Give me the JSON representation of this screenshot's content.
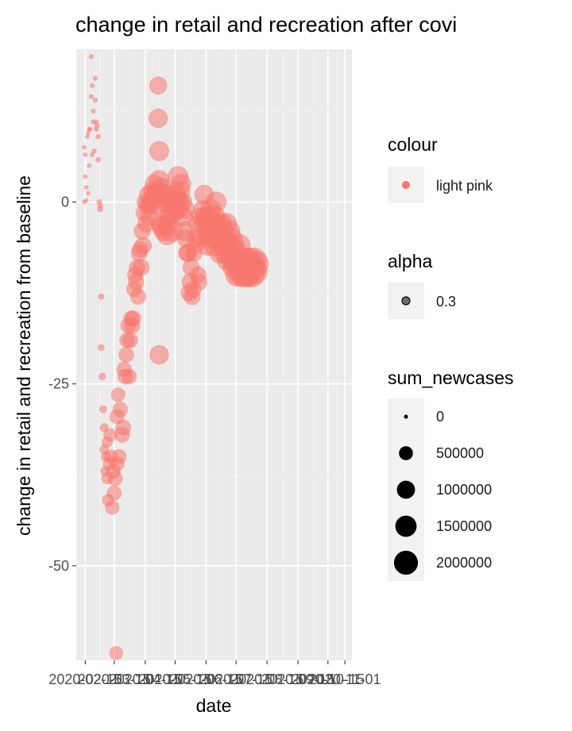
{
  "chart_data": {
    "type": "scatter",
    "title": "change in retail and recreation after covi",
    "xlabel": "date",
    "ylabel": "change in retail and recreation from baseline",
    "x_range": [
      "2020-02-06",
      "2020-11-08"
    ],
    "x_ticks": [
      "2020-02-15",
      "2020-03-15",
      "2020-04-15",
      "2020-05-15",
      "2020-06-15",
      "2020-07-15",
      "2020-08-15",
      "2020-09-15",
      "2020-10-15",
      "2020-11-01"
    ],
    "x_tick_labels": [
      "2020-02-15",
      "2020-03-15",
      "2020-04-15",
      "2020-05-15",
      "2020-06-15",
      "2020-07-15",
      "2020-08-15",
      "2020-09-15",
      "2020-10-15",
      "2020-11-01"
    ],
    "ylim": [
      -63,
      21
    ],
    "y_ticks": [
      0,
      -25,
      -50
    ],
    "y_tick_labels": [
      "0",
      "-25",
      "-50"
    ],
    "grid": true,
    "point_color": "#F8766D",
    "panel_background": "#EBEBEB",
    "point_alpha": 0.55,
    "legend": {
      "position": "right",
      "colour": {
        "title": "colour",
        "entries": [
          "light pink"
        ]
      },
      "alpha": {
        "title": "alpha",
        "entries": [
          "0.3"
        ]
      },
      "size": {
        "title": "sum_newcases",
        "entries": [
          "0",
          "500000",
          "1000000",
          "1500000",
          "2000000"
        ],
        "values": [
          0,
          500000,
          1000000,
          1500000,
          2000000
        ]
      }
    },
    "points_note": "each point: [day offset from 2020-02-06, change from baseline, sum_newcases]",
    "points": [
      [
        8,
        7.5,
        2000
      ],
      [
        8,
        0,
        2000
      ],
      [
        9,
        3.5,
        2000
      ],
      [
        9,
        6.5,
        2000
      ],
      [
        10,
        0.2,
        2000
      ],
      [
        10,
        2,
        2000
      ],
      [
        11,
        9,
        2000
      ],
      [
        12,
        1.2,
        2000
      ],
      [
        12,
        9.5,
        2000
      ],
      [
        13,
        10,
        2000
      ],
      [
        13,
        5,
        2000
      ],
      [
        14,
        10,
        2000
      ],
      [
        15,
        20,
        5000
      ],
      [
        15,
        14.5,
        5000
      ],
      [
        16,
        16,
        5000
      ],
      [
        16,
        6.5,
        5000
      ],
      [
        17,
        11,
        5000
      ],
      [
        17,
        12.5,
        5000
      ],
      [
        18,
        7,
        5000
      ],
      [
        19,
        17,
        5000
      ],
      [
        19,
        14,
        8000
      ],
      [
        20,
        11,
        8000
      ],
      [
        20,
        10,
        8000
      ],
      [
        21,
        10.5,
        10000
      ],
      [
        22,
        9,
        10000
      ],
      [
        22,
        5.8,
        10000
      ],
      [
        23,
        0,
        15000
      ],
      [
        24,
        -0.5,
        15000
      ],
      [
        24,
        -1,
        20000
      ],
      [
        25,
        -13,
        30000
      ],
      [
        25,
        -20,
        40000
      ],
      [
        26,
        -24,
        60000
      ],
      [
        27,
        -28.5,
        80000
      ],
      [
        28,
        -31,
        120000
      ],
      [
        28,
        -34,
        150000
      ],
      [
        29,
        -37,
        180000
      ],
      [
        30,
        -35,
        200000
      ],
      [
        31,
        -33,
        250000
      ],
      [
        31,
        -38,
        300000
      ],
      [
        32,
        -41,
        350000
      ],
      [
        33,
        -36,
        400000
      ],
      [
        34,
        -32,
        450000
      ],
      [
        35,
        -35,
        500000
      ],
      [
        36,
        -42,
        550000
      ],
      [
        37,
        -37,
        600000
      ],
      [
        38,
        -40,
        620000
      ],
      [
        39,
        -38,
        650000
      ],
      [
        40,
        -62,
        500000
      ],
      [
        41,
        -36,
        600000
      ],
      [
        41,
        -29.5,
        620000
      ],
      [
        42,
        -26.5,
        550000
      ],
      [
        43,
        -35,
        600000
      ],
      [
        44,
        -28.5,
        650000
      ],
      [
        46,
        -32,
        700000
      ],
      [
        47,
        -31,
        700000
      ],
      [
        48,
        -23,
        650000
      ],
      [
        49,
        -24,
        700000
      ],
      [
        50,
        -21,
        700000
      ],
      [
        51,
        -19,
        700000
      ],
      [
        52,
        -17,
        700000
      ],
      [
        53,
        -24,
        650000
      ],
      [
        54,
        -19,
        700000
      ],
      [
        55,
        -16,
        700000
      ],
      [
        56,
        -17,
        750000
      ],
      [
        57,
        -16,
        750000
      ],
      [
        58,
        -12,
        700000
      ],
      [
        59,
        -10,
        750000
      ],
      [
        60,
        -11,
        750000
      ],
      [
        61,
        -9,
        800000
      ],
      [
        62,
        -13,
        750000
      ],
      [
        63,
        -7,
        800000
      ],
      [
        64,
        -6.5,
        800000
      ],
      [
        65,
        -9,
        850000
      ],
      [
        66,
        -4,
        850000
      ],
      [
        67,
        -6,
        900000
      ],
      [
        68,
        -1.5,
        900000
      ],
      [
        69,
        0,
        900000
      ],
      [
        70,
        -3,
        950000
      ],
      [
        71,
        -0.5,
        950000
      ],
      [
        72,
        1,
        1000000
      ],
      [
        73,
        -2,
        1000000
      ],
      [
        74,
        -0.5,
        1000000
      ],
      [
        75,
        0,
        1050000
      ],
      [
        76,
        1.5,
        1050000
      ],
      [
        77,
        0.5,
        1100000
      ],
      [
        78,
        2.5,
        1100000
      ],
      [
        79,
        1,
        1150000
      ],
      [
        80,
        -0.5,
        1150000
      ],
      [
        81,
        1.5,
        1200000
      ],
      [
        82,
        16,
        1000000
      ],
      [
        82,
        11.5,
        1200000
      ],
      [
        83,
        -21,
        1200000
      ],
      [
        83,
        7,
        1300000
      ],
      [
        83,
        3,
        1350000
      ],
      [
        84,
        -3,
        1300000
      ],
      [
        85,
        2,
        1350000
      ],
      [
        86,
        -3.5,
        1350000
      ],
      [
        87,
        1,
        1400000
      ],
      [
        88,
        -4,
        1400000
      ],
      [
        89,
        0,
        1400000
      ],
      [
        90,
        -3,
        1450000
      ],
      [
        91,
        -4.5,
        1450000
      ],
      [
        92,
        1,
        1450000
      ],
      [
        93,
        -2,
        1500000
      ],
      [
        94,
        0,
        1500000
      ],
      [
        95,
        -1.5,
        1500000
      ],
      [
        96,
        -4,
        1550000
      ],
      [
        97,
        0,
        1500000
      ],
      [
        98,
        -1,
        1500000
      ],
      [
        99,
        1,
        1500000
      ],
      [
        100,
        0,
        1450000
      ],
      [
        101,
        -1,
        1450000
      ],
      [
        102,
        3.5,
        1400000
      ],
      [
        103,
        0,
        1400000
      ],
      [
        104,
        1.5,
        1400000
      ],
      [
        105,
        2.5,
        1350000
      ],
      [
        106,
        0,
        1300000
      ],
      [
        107,
        -2,
        1300000
      ],
      [
        108,
        -4,
        1250000
      ],
      [
        109,
        -1,
        1200000
      ],
      [
        110,
        -5,
        1100000
      ],
      [
        111,
        -7,
        1000000
      ],
      [
        112,
        -7,
        950000
      ],
      [
        113,
        -12.5,
        900000
      ],
      [
        114,
        -11,
        900000
      ],
      [
        115,
        -9,
        900000
      ],
      [
        116,
        -13,
        850000
      ],
      [
        117,
        -12,
        800000
      ],
      [
        118,
        -7,
        850000
      ],
      [
        119,
        -6,
        900000
      ],
      [
        120,
        -5,
        950000
      ],
      [
        121,
        -3,
        1000000
      ],
      [
        122,
        -10,
        850000
      ],
      [
        123,
        -11,
        800000
      ],
      [
        124,
        -2,
        1000000
      ],
      [
        125,
        -5,
        1050000
      ],
      [
        126,
        -3,
        1100000
      ],
      [
        127,
        -1,
        1150000
      ],
      [
        128,
        1,
        1200000
      ],
      [
        129,
        -2,
        1250000
      ],
      [
        130,
        -4,
        1300000
      ],
      [
        131,
        -3,
        1300000
      ],
      [
        132,
        -6,
        1350000
      ],
      [
        133,
        -2,
        1350000
      ],
      [
        134,
        -5,
        1400000
      ],
      [
        135,
        -1,
        1400000
      ],
      [
        136,
        -4,
        1400000
      ],
      [
        137,
        -3,
        1450000
      ],
      [
        138,
        -6,
        1450000
      ],
      [
        139,
        -2,
        1450000
      ],
      [
        140,
        0,
        1450000
      ],
      [
        141,
        -3,
        1500000
      ],
      [
        142,
        -5,
        1500000
      ],
      [
        143,
        -4,
        1500000
      ],
      [
        144,
        -7,
        1550000
      ],
      [
        145,
        -3,
        1550000
      ],
      [
        146,
        -6,
        1550000
      ],
      [
        147,
        -4,
        1600000
      ],
      [
        148,
        -5,
        1600000
      ],
      [
        149,
        -7,
        1600000
      ],
      [
        150,
        -3,
        1650000
      ],
      [
        151,
        -6,
        1650000
      ],
      [
        152,
        -8,
        1700000
      ],
      [
        153,
        -4,
        1700000
      ],
      [
        154,
        -7,
        1700000
      ],
      [
        155,
        -5,
        1750000
      ],
      [
        156,
        -8,
        1750000
      ],
      [
        157,
        -6,
        1800000
      ],
      [
        158,
        -9,
        1800000
      ],
      [
        159,
        -7,
        1850000
      ],
      [
        160,
        -8,
        1900000
      ],
      [
        161,
        -10,
        1950000
      ],
      [
        162,
        -9,
        2000000
      ],
      [
        163,
        -6,
        1900000
      ],
      [
        164,
        -8,
        2000000
      ],
      [
        165,
        -10,
        2050000
      ],
      [
        166,
        -9,
        2100000
      ],
      [
        167,
        -8,
        2050000
      ],
      [
        168,
        -10,
        2100000
      ],
      [
        169,
        -9,
        2150000
      ],
      [
        170,
        -10,
        2200000
      ],
      [
        171,
        -8,
        2100000
      ],
      [
        172,
        -10,
        2200000
      ],
      [
        173,
        -9,
        2200000
      ],
      [
        174,
        -8,
        2200000
      ],
      [
        175,
        -9,
        2250000
      ],
      [
        176,
        -10,
        2250000
      ],
      [
        177,
        -9,
        2250000
      ],
      [
        178,
        -8,
        2300000
      ],
      [
        179,
        -9.5,
        2300000
      ],
      [
        180,
        -8.5,
        2300000
      ]
    ]
  }
}
